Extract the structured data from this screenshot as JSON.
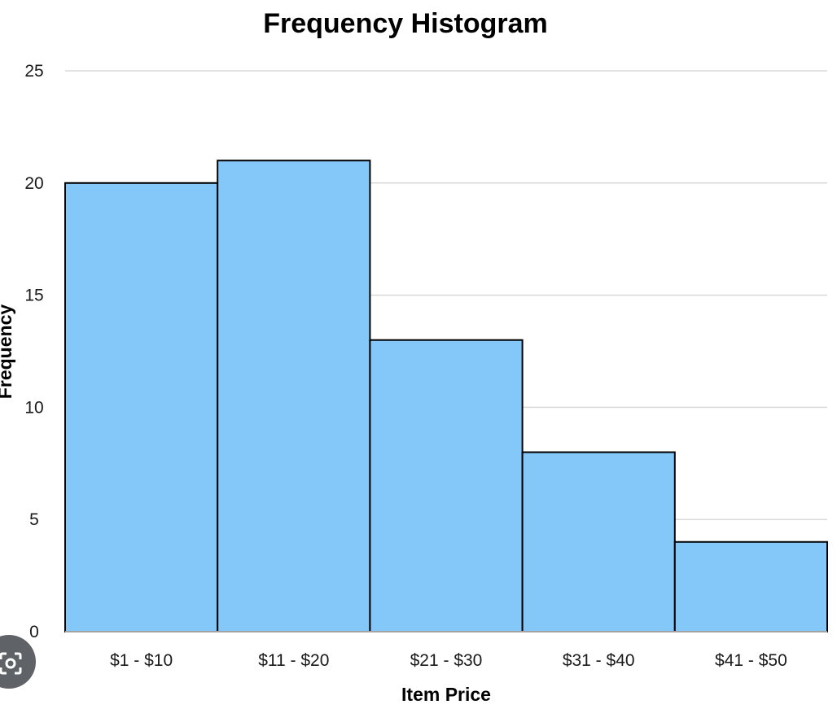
{
  "chart_data": {
    "type": "bar",
    "title": "Frequency Histogram",
    "xlabel": "Item Price",
    "ylabel": "Frequency",
    "categories": [
      "$1 - $10",
      "$11 - $20",
      "$21 - $30",
      "$31 - $40",
      "$41 - $50"
    ],
    "values": [
      20,
      21,
      13,
      8,
      4
    ],
    "ylim": [
      0,
      25
    ],
    "yticks": [
      0,
      5,
      10,
      15,
      20,
      25
    ],
    "grid": true,
    "legend": "none",
    "bar_color": "#83c8f8",
    "bar_edge_color": "#000000",
    "gridline_color": "#d9d9d9"
  },
  "overlay": {
    "icon": "visual-search-icon"
  }
}
